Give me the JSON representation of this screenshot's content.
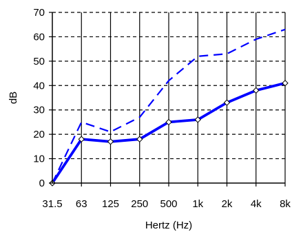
{
  "chart_data": {
    "type": "line",
    "title": "",
    "xlabel": "Hertz (Hz)",
    "ylabel": "dB",
    "categories": [
      "31.5",
      "63",
      "125",
      "250",
      "500",
      "1k",
      "2k",
      "4k",
      "8k"
    ],
    "ylim": [
      0,
      70
    ],
    "yticks": [
      0,
      10,
      20,
      30,
      40,
      50,
      60,
      70
    ],
    "grid": "dashed horizontal and solid vertical",
    "legend": "none",
    "series": [
      {
        "values": [
          0,
          18,
          17,
          18,
          25,
          26,
          33,
          38,
          41
        ],
        "color": "#0000ff",
        "style": "solid",
        "markers": "diamond"
      },
      {
        "values": [
          0,
          25,
          21,
          27,
          42,
          52,
          53,
          59,
          63
        ],
        "color": "#0000ff",
        "style": "dashed",
        "markers": "none"
      }
    ]
  }
}
